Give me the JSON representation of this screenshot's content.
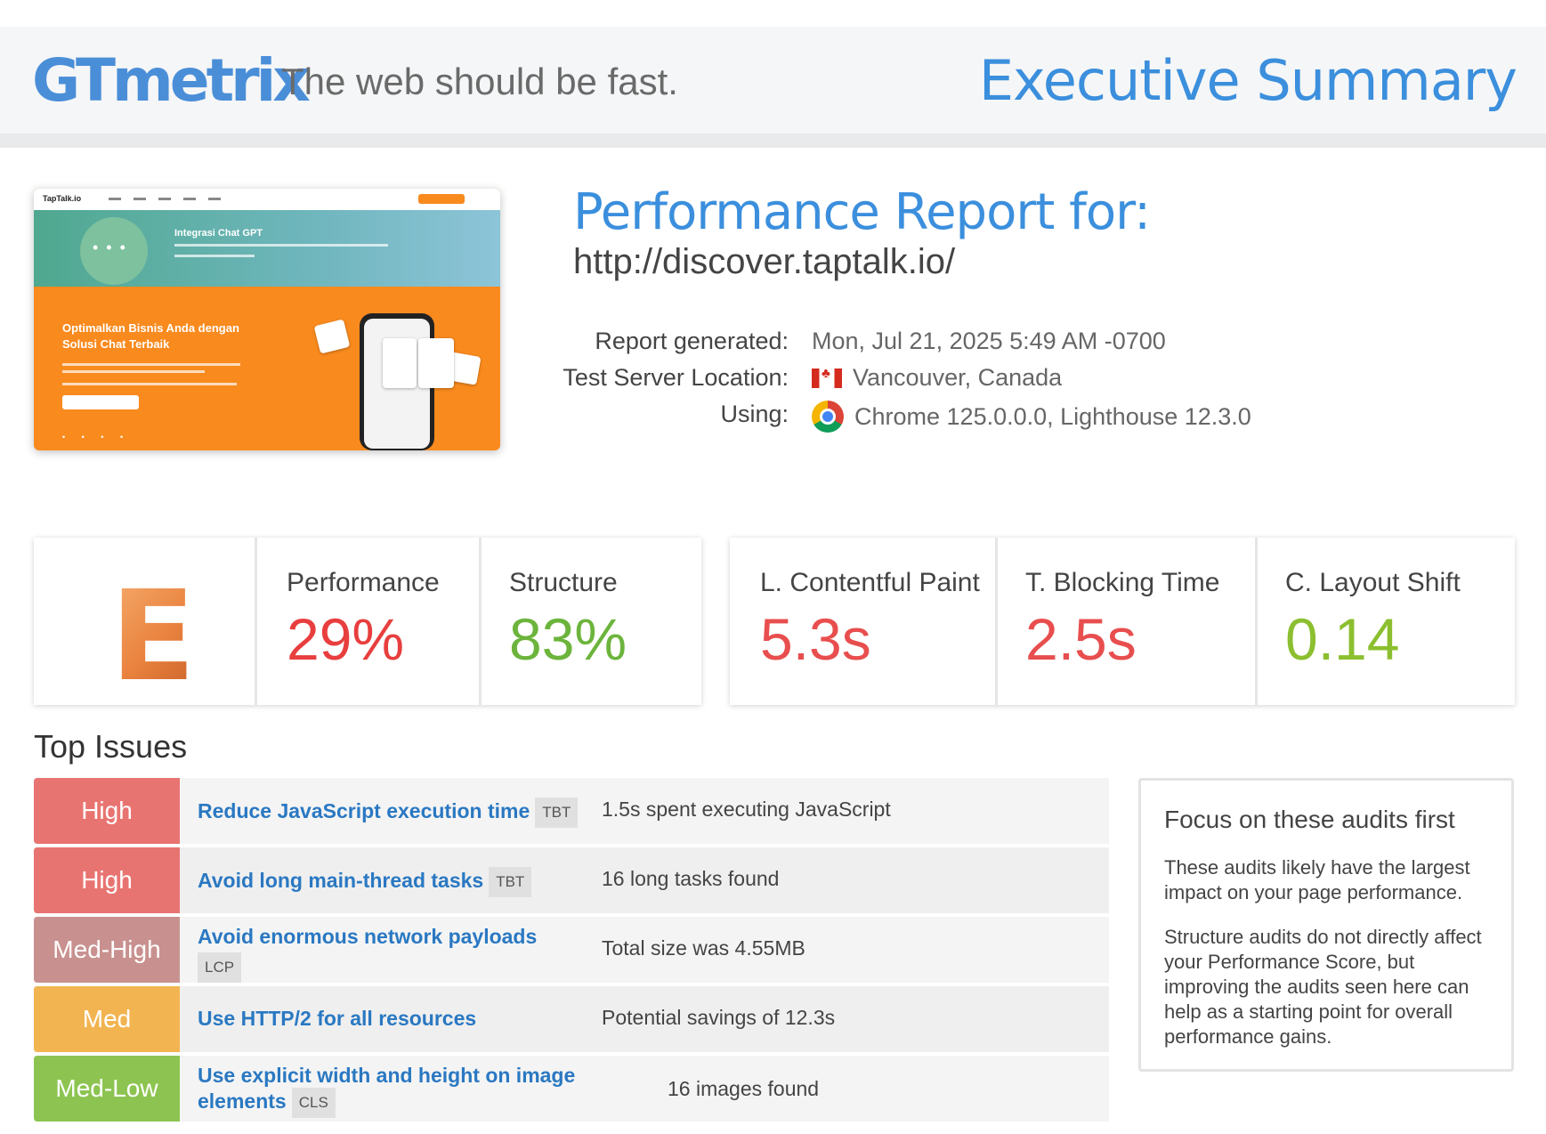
{
  "header": {
    "logo": "GTmetrix",
    "tagline": "The web should be fast.",
    "title": "Executive Summary"
  },
  "thumbnail": {
    "site_logo": "TapTalk.io",
    "banner_text": "Integrasi Chat GPT",
    "hero_text": "Optimalkan Bisnis Anda dengan Solusi Chat Terbaik"
  },
  "report": {
    "title": "Performance Report for:",
    "url": "http://discover.taptalk.io/",
    "generated_label": "Report generated:",
    "generated_value": "Mon, Jul 21, 2025 5:49 AM -0700",
    "location_label": "Test Server Location:",
    "location_value": "Vancouver, Canada",
    "using_label": "Using:",
    "using_value": "Chrome 125.0.0.0, Lighthouse 12.3.0"
  },
  "scores": {
    "grade": "E",
    "performance_label": "Performance",
    "performance_value": "29%",
    "structure_label": "Structure",
    "structure_value": "83%",
    "lcp_label": "L. Contentful Paint",
    "lcp_value": "5.3s",
    "tbt_label": "T. Blocking Time",
    "tbt_value": "2.5s",
    "cls_label": "C. Layout Shift",
    "cls_value": "0.14"
  },
  "colors": {
    "red": "#e83e3e",
    "green": "#6cb43c",
    "lime": "#8cbf2f",
    "high": "#e87471",
    "med_high": "#c8918f",
    "med": "#f2b450",
    "med_low": "#8dc451"
  },
  "issues": {
    "title": "Top Issues",
    "items": [
      {
        "severity": "High",
        "name": "Reduce JavaScript execution time",
        "tag": "TBT",
        "detail": "1.5s spent executing JavaScript"
      },
      {
        "severity": "High",
        "name": "Avoid long main-thread tasks",
        "tag": "TBT",
        "detail": "16 long tasks found"
      },
      {
        "severity": "Med-High",
        "name": "Avoid enormous network payloads",
        "tag": "LCP",
        "detail": "Total size was 4.55MB"
      },
      {
        "severity": "Med",
        "name": "Use HTTP/2 for all resources",
        "tag": "",
        "detail": "Potential savings of 12.3s"
      },
      {
        "severity": "Med-Low",
        "name": "Use explicit width and height on image elements",
        "tag": "CLS",
        "detail": "16 images found"
      }
    ]
  },
  "focus": {
    "title": "Focus on these audits first",
    "p1": "These audits likely have the largest impact on your page performance.",
    "p2": "Structure audits do not directly affect your Performance Score, but improving the audits seen here can help as a starting point for overall performance gains."
  }
}
